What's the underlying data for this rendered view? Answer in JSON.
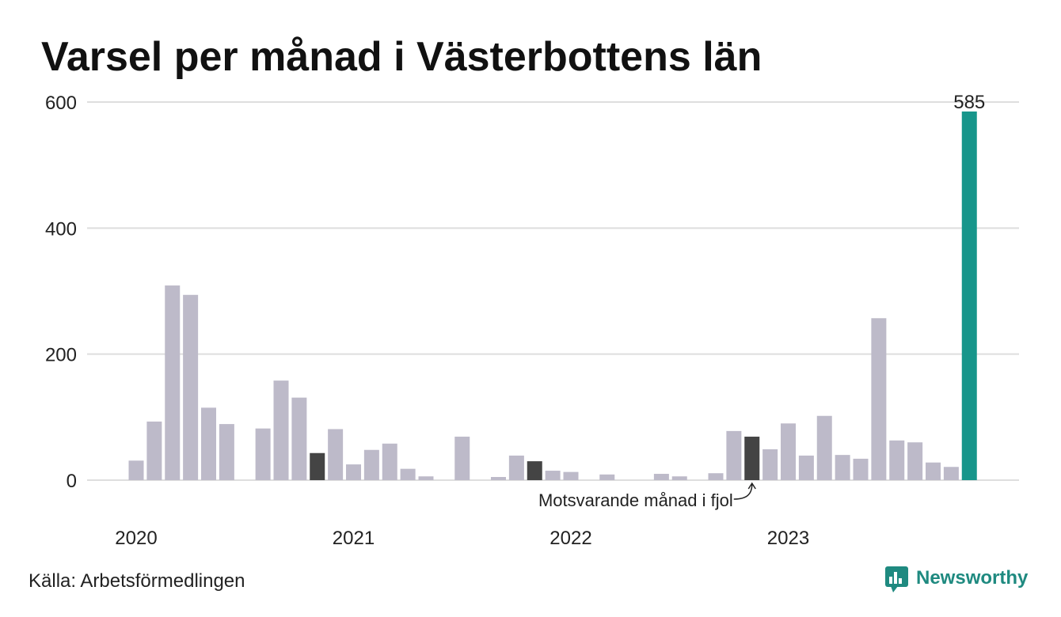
{
  "source": "Källa: Arbetsförmedlingen",
  "logo": {
    "text": "Newsworthy",
    "icon": "newsworthy-logo-icon"
  },
  "colors": {
    "default_bar": "#bdbac9",
    "comparison_bar": "#444444",
    "current_bar": "#17968b",
    "grid": "#dedede",
    "logo": "#1f8a80"
  },
  "chart_data": {
    "type": "bar",
    "title": "Varsel per månad i Västerbottens län",
    "x": [
      "2020-01",
      "2020-02",
      "2020-03",
      "2020-04",
      "2020-05",
      "2020-06",
      "2020-07",
      "2020-08",
      "2020-09",
      "2020-10",
      "2020-11",
      "2020-12",
      "2021-01",
      "2021-02",
      "2021-03",
      "2021-04",
      "2021-05",
      "2021-06",
      "2021-07",
      "2021-08",
      "2021-09",
      "2021-10",
      "2021-11",
      "2021-12",
      "2022-01",
      "2022-02",
      "2022-03",
      "2022-04",
      "2022-05",
      "2022-06",
      "2022-07",
      "2022-08",
      "2022-09",
      "2022-10",
      "2022-11",
      "2022-12",
      "2023-01",
      "2023-02",
      "2023-03",
      "2023-04",
      "2023-05",
      "2023-06",
      "2023-07",
      "2023-08",
      "2023-09",
      "2023-10",
      "2023-11"
    ],
    "values": [
      31,
      93,
      309,
      294,
      115,
      89,
      0,
      82,
      158,
      131,
      43,
      81,
      25,
      48,
      58,
      18,
      6,
      0,
      69,
      0,
      5,
      39,
      30,
      15,
      13,
      0,
      9,
      0,
      0,
      10,
      6,
      0,
      11,
      78,
      69,
      49,
      90,
      39,
      102,
      40,
      34,
      257,
      63,
      60,
      28,
      21,
      585
    ],
    "ylim": [
      0,
      600
    ],
    "yticks": [
      0,
      200,
      400,
      600
    ],
    "xticks": [
      {
        "label": "2020",
        "x": "2020-01"
      },
      {
        "label": "2021",
        "x": "2021-01"
      },
      {
        "label": "2022",
        "x": "2022-01"
      },
      {
        "label": "2023",
        "x": "2023-01"
      }
    ],
    "grid": true,
    "highlight": {
      "comparison": [
        "2020-11",
        "2021-11",
        "2022-11"
      ],
      "current": "2023-11"
    },
    "data_labels": [
      {
        "x": "2023-11",
        "text": "585"
      }
    ],
    "annotations": [
      {
        "text": "Motsvarande månad i fjol",
        "target": "2022-11"
      }
    ]
  }
}
